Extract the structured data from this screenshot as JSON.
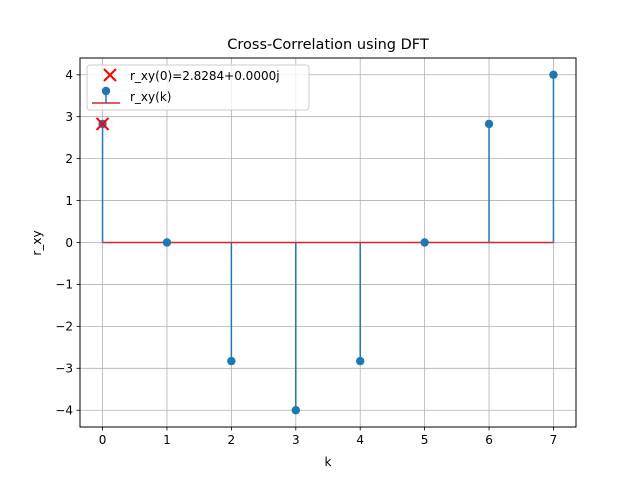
{
  "chart_data": {
    "type": "stem",
    "title": "Cross-Correlation using DFT",
    "xlabel": "k",
    "ylabel": "r_xy",
    "xlim": [
      -0.35,
      7.35
    ],
    "ylim": [
      -4.4,
      4.4
    ],
    "xticks": [
      0,
      1,
      2,
      3,
      4,
      5,
      6,
      7
    ],
    "yticks": [
      -4,
      -3,
      -2,
      -1,
      0,
      1,
      2,
      3,
      4
    ],
    "ytick_labels": [
      "−4",
      "−3",
      "−2",
      "−1",
      "0",
      "1",
      "2",
      "3",
      "4"
    ],
    "grid": true,
    "x": [
      0,
      1,
      2,
      3,
      4,
      5,
      6,
      7
    ],
    "series": [
      {
        "name": "r_xy(k)",
        "values": [
          2.8284,
          0,
          -2.8284,
          -4,
          -2.8284,
          0,
          2.8284,
          4
        ],
        "marker_color": "#1f77b4",
        "baseline_color": "#d62728"
      }
    ],
    "annotations": [
      {
        "name": "r_xy(0)=2.8284+0.0000j",
        "x": 0,
        "y": 2.8284,
        "marker": "x",
        "color": "#ff0000"
      }
    ],
    "legend": {
      "position": "top-left",
      "entries": [
        "r_xy(0)=2.8284+0.0000j",
        "r_xy(k)"
      ]
    }
  }
}
